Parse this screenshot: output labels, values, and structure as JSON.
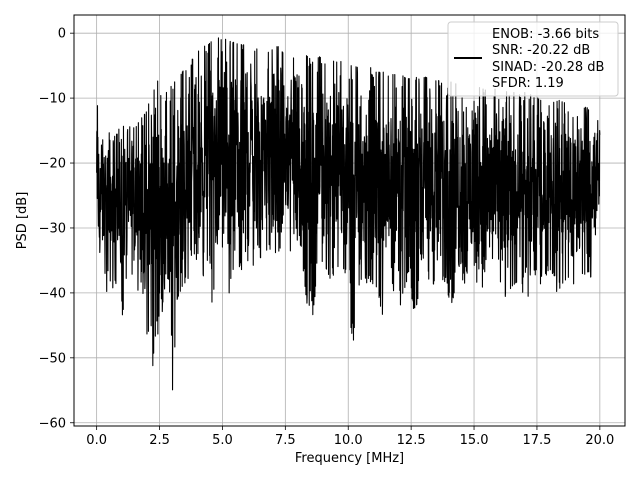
{
  "chart_data": {
    "type": "line",
    "xlabel": "Frequency [MHz]",
    "ylabel": "PSD [dB]",
    "xlim": [
      -0.9,
      21.0
    ],
    "ylim": [
      -60.5,
      2.8
    ],
    "xticks": [
      0.0,
      2.5,
      5.0,
      7.5,
      10.0,
      12.5,
      15.0,
      17.5,
      20.0
    ],
    "xtick_labels": [
      "0.0",
      "2.5",
      "5.0",
      "7.5",
      "10.0",
      "12.5",
      "15.0",
      "17.5",
      "20.0"
    ],
    "yticks": [
      0,
      -10,
      -20,
      -30,
      -40,
      -50,
      -60
    ],
    "ytick_labels": [
      "0",
      "−10",
      "−20",
      "−30",
      "−40",
      "−50",
      "−60"
    ],
    "grid": true,
    "legend_position": "top-right",
    "legend_lines": [
      "ENOB: -3.66 bits",
      "SNR: -20.22 dB",
      "SINAD: -20.28 dB",
      "SFDR: 1.19"
    ],
    "series": [
      {
        "color": "#000000",
        "x": [
          0.0,
          0.05,
          0.1,
          0.2,
          0.3,
          0.4,
          0.55,
          0.7,
          0.85,
          1.0,
          1.2,
          1.4,
          1.6,
          1.8,
          2.0,
          2.15,
          2.25,
          2.4,
          2.6,
          2.8,
          3.0,
          3.2,
          3.4,
          3.6,
          3.8,
          4.0,
          4.2,
          4.4,
          4.6,
          4.8,
          5.0,
          5.2,
          5.4,
          5.6,
          5.8,
          6.0,
          6.2,
          6.4,
          6.6,
          6.8,
          7.0,
          7.2,
          7.4,
          7.6,
          7.8,
          8.0,
          8.2,
          8.5,
          8.8,
          9.0,
          9.3,
          9.6,
          9.9,
          10.2,
          10.5,
          10.8,
          11.1,
          11.4,
          11.7,
          12.0,
          12.3,
          12.6,
          12.9,
          13.2,
          13.5,
          13.8,
          14.1,
          14.4,
          14.7,
          15.0,
          15.3,
          15.6,
          15.9,
          16.2,
          16.5,
          16.8,
          17.1,
          17.4,
          17.7,
          18.0,
          18.3,
          18.6,
          18.9,
          19.2,
          19.5,
          19.8,
          20.0
        ],
        "upper": [
          -9.5,
          -12,
          -13,
          -16,
          -17,
          -16,
          -15,
          -16,
          -15,
          -14,
          -15,
          -14,
          -14,
          -13,
          -12,
          -8,
          -4,
          -7,
          -10,
          -9,
          -8,
          -7,
          -6,
          -5,
          -4,
          -3,
          -2,
          -2,
          -1,
          -0.5,
          0.0,
          -1,
          -1.5,
          -1,
          -2,
          -1,
          -2,
          -2.5,
          -2,
          -3,
          -2.5,
          -2,
          -3,
          -3.5,
          -3,
          -4,
          -3,
          -4,
          -3.5,
          -4,
          -4.5,
          -4,
          -5,
          -5,
          -5.5,
          -5,
          -6,
          -6,
          -6.5,
          -6,
          -7,
          -7,
          -6.5,
          -7,
          -7,
          -8,
          -7.5,
          -8,
          -8,
          -8,
          -8.5,
          -9,
          -8.5,
          -9,
          -9,
          -9.5,
          -9,
          -10,
          -10,
          -10,
          -10.5,
          -10,
          -11,
          -11,
          -11.5,
          -12,
          -13
        ],
        "lower": [
          -21,
          -39,
          -38,
          -33,
          -35,
          -41,
          -38,
          -40,
          -37,
          -44,
          -39,
          -37,
          -40,
          -38,
          -48,
          -45,
          -53,
          -47,
          -43,
          -40,
          -57,
          -41,
          -39,
          -38,
          -37,
          -36,
          -38,
          -35,
          -42,
          -37,
          -36,
          -41,
          -38,
          -36,
          -37,
          -35,
          -36,
          -34,
          -35,
          -33,
          -35,
          -34,
          -33,
          -34,
          -34,
          -35,
          -36,
          -47,
          -36,
          -35,
          -38,
          -36,
          -37,
          -49,
          -40,
          -38,
          -39,
          -44,
          -37,
          -45,
          -38,
          -43,
          -40,
          -38,
          -39,
          -38,
          -42,
          -37,
          -39,
          -38,
          -39,
          -40,
          -37,
          -41,
          -39,
          -38,
          -43,
          -37,
          -39,
          -36,
          -40,
          -38,
          -39,
          -37,
          -38,
          -37,
          -27
        ]
      }
    ]
  }
}
